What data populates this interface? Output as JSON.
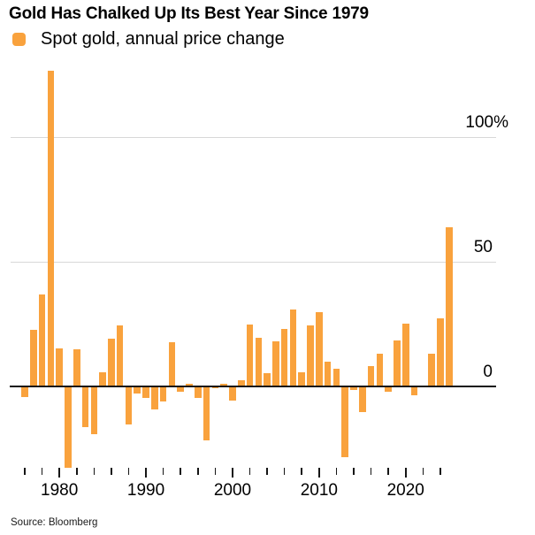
{
  "header": {
    "title": "Gold Has Chalked Up Its Best Year Since 1979",
    "legend_label": "Spot gold, annual price change"
  },
  "chart_data": {
    "type": "bar",
    "title": "Gold Has Chalked Up Its Best Year Since 1979",
    "series_name": "Spot gold, annual price change",
    "unit": "%",
    "x": [
      1976,
      1977,
      1978,
      1979,
      1980,
      1981,
      1982,
      1983,
      1984,
      1985,
      1986,
      1987,
      1988,
      1989,
      1990,
      1991,
      1992,
      1993,
      1994,
      1995,
      1996,
      1997,
      1998,
      1999,
      2000,
      2001,
      2002,
      2003,
      2004,
      2005,
      2006,
      2007,
      2008,
      2009,
      2010,
      2011,
      2012,
      2013,
      2014,
      2015,
      2016,
      2017,
      2018,
      2019,
      2020,
      2021,
      2022,
      2023,
      2024,
      2025
    ],
    "values": [
      -4.1,
      22.6,
      37,
      126.5,
      15.2,
      -32.6,
      14.9,
      -16.3,
      -19.2,
      5.8,
      19,
      24.5,
      -15.3,
      -2.8,
      -4.5,
      -9.2,
      -5.9,
      17.7,
      -2.2,
      1,
      -4.6,
      -21.5,
      -0.8,
      0.9,
      -5.5,
      2.5,
      24.7,
      19.5,
      5.4,
      18,
      23.2,
      31,
      5.5,
      24.4,
      29.7,
      10.1,
      7.1,
      -28.3,
      -1.5,
      -10.4,
      8.1,
      13.1,
      -2.1,
      18.3,
      25.1,
      -3.6,
      -0.3,
      13.1,
      27.2,
      64
    ],
    "ylim": [
      -33,
      130
    ],
    "y_axis_labels": [
      {
        "value": 100,
        "label": "100%"
      },
      {
        "value": 50,
        "label": "50"
      },
      {
        "value": 0,
        "label": "0"
      }
    ],
    "y_gridlines": [
      100,
      50
    ],
    "x_ticks": [
      1976,
      1978,
      1980,
      1982,
      1984,
      1986,
      1988,
      1990,
      1992,
      1994,
      1996,
      1998,
      2000,
      2002,
      2004,
      2006,
      2008,
      2010,
      2012,
      2014,
      2016,
      2018,
      2020,
      2022,
      2024
    ],
    "x_decade_labels": [
      1980,
      1990,
      2000,
      2010,
      2020
    ],
    "grid_on": true,
    "legend_position": "top-left",
    "bar_color": "#F9A23D",
    "grid_color": "#D8D8D8",
    "axis_color": "#151515",
    "text_color": "#000000"
  },
  "footer": {
    "source": "Source: Bloomberg"
  }
}
